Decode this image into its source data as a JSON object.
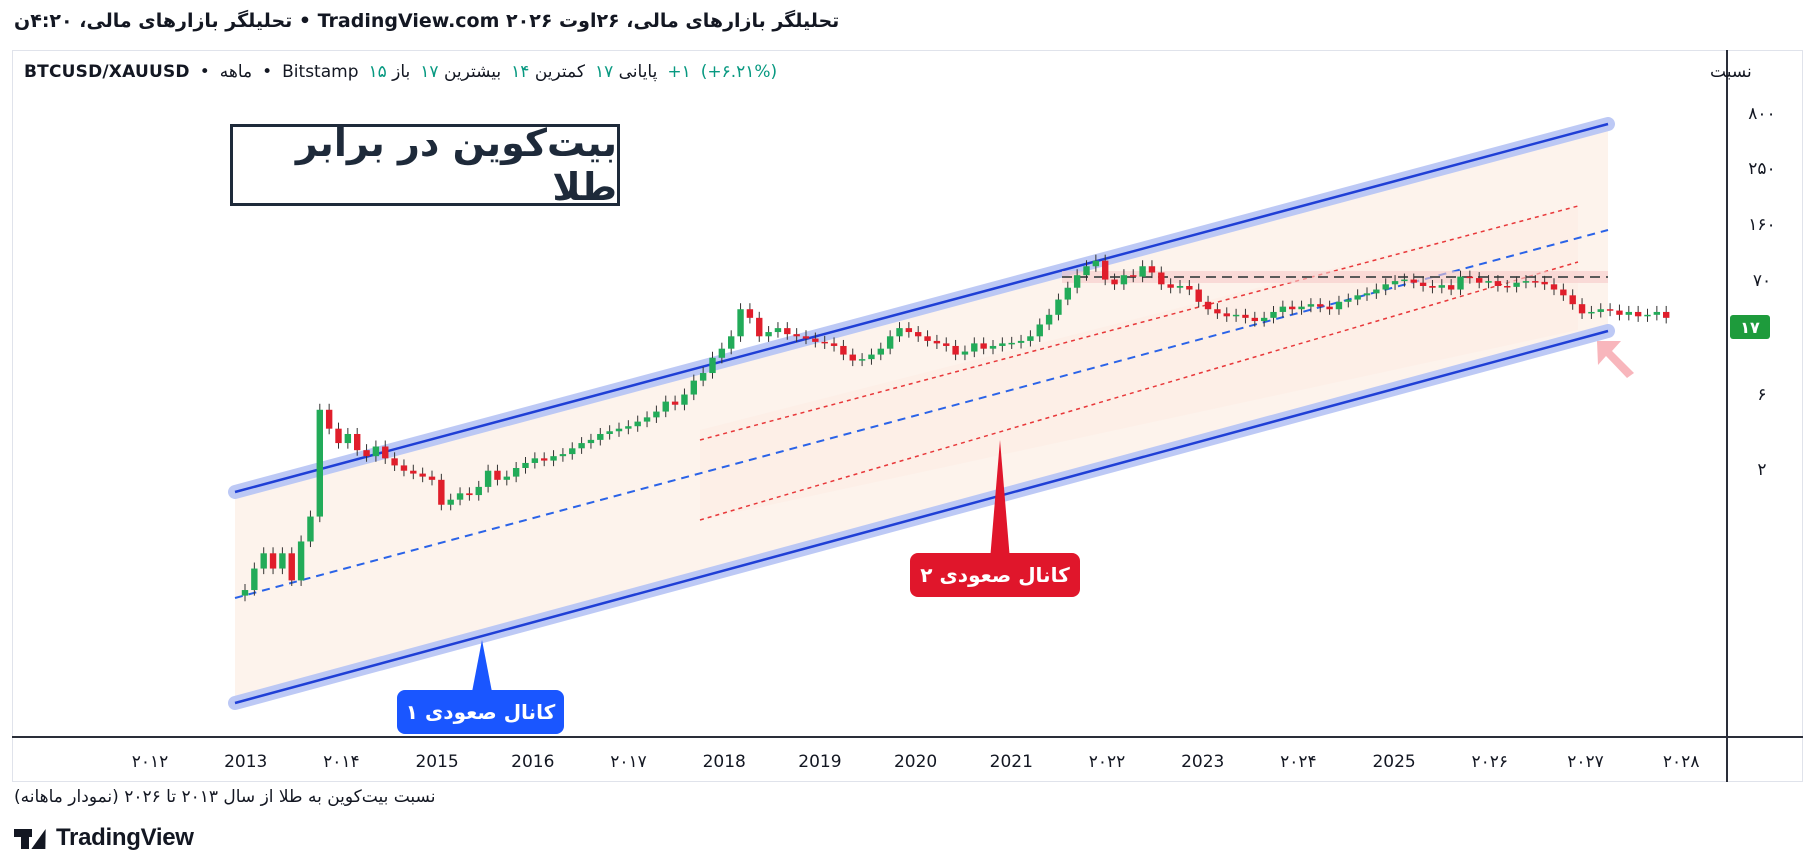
{
  "header": {
    "title": "تحلیلگر بازارهای  مالی، ۲۶اوت ۲۰۲۶  TradingView.com • تحلیلگر بازارهای مالی، ۴:۲۰ن"
  },
  "legend": {
    "symbol": "BTCUSD/XAUUSD",
    "sep1": "•",
    "interval": "ماهه",
    "sep2": "•",
    "exchange": "Bitstamp",
    "open_label": "باز",
    "open_value": "۱۵",
    "high_label": "بیشترین",
    "high_value": "۱۷",
    "low_label": "کمترین",
    "low_value": "۱۴",
    "close_label": "پایانی",
    "close_value": "۱۷",
    "change": "+۱",
    "change_pct": "(+۶.۲۱%)"
  },
  "overlay": {
    "title": "بیت‌کوین در برابر طلا",
    "callout_channel1": "کانال صعودی ۱",
    "callout_channel2": "کانال صعودی ۲"
  },
  "footer": {
    "caption": "نسبت بیت‌کوین به طلا از سال ۲۰۱۳ تا ۲۰۲۶ (نمودار ماهانه)",
    "brand": "TradingView"
  },
  "colors": {
    "up": "#22ab59",
    "down": "#e01e2b",
    "channel_line": "#1f3fd6",
    "channel_glow": "#b6c4f5",
    "mid_line": "#2a63e8",
    "inner_channel": "#e8383a",
    "fill": "#fdf3ec",
    "price_badge": "#1e9b3c"
  },
  "chart_data": {
    "type": "candlestick",
    "y_axis_title": "نسبت",
    "y_scale": "log",
    "y_ticks": [
      "۸۰۰",
      "۲۵۰",
      "۱۶۰",
      "۷۰",
      "۶",
      "۲"
    ],
    "last_price_label": "۱۷",
    "x_ticks": [
      "۲۰۱۲",
      "2013",
      "۲۰۱۴",
      "2015",
      "2016",
      "۲۰۱۷",
      "2018",
      "2019",
      "2020",
      "2021",
      "۲۰۲۲",
      "2023",
      "۲۰۲۴",
      "2025",
      "۲۰۲۶",
      "۲۰۲۷",
      "۲۰۲۸"
    ],
    "series": [
      {
        "close": [
          0.1,
          0.15,
          0.2,
          0.15,
          0.2,
          0.12,
          0.25,
          0.4,
          3.0,
          2.1,
          1.6,
          1.9,
          1.4,
          1.25,
          1.5,
          1.2,
          1.05,
          0.95,
          0.9,
          0.85,
          0.8,
          0.5,
          0.55,
          0.62,
          0.6,
          0.7,
          0.95,
          0.8,
          0.85,
          1.0,
          1.1,
          1.2,
          1.15,
          1.25,
          1.3,
          1.45,
          1.6,
          1.7,
          1.9,
          2.0,
          2.1,
          2.2,
          2.4,
          2.6,
          2.9,
          3.5,
          3.3,
          4.0,
          5.2,
          6.0,
          8.0,
          9.5,
          12.0,
          20.0,
          17.0,
          12.0,
          13.0,
          14.0,
          12.5,
          12.0,
          11.5,
          10.8,
          10.5,
          10.0,
          8.5,
          7.6,
          7.8,
          8.5,
          9.5,
          12.0,
          14.0,
          13.0,
          12.0,
          11.0,
          10.5,
          10.0,
          8.5,
          9.0,
          10.5,
          9.5,
          10.0,
          10.5,
          10.6,
          11.0,
          12.0,
          15.0,
          18.0,
          24.0,
          30.0,
          38.0,
          45.0,
          50.0,
          35.0,
          32.0,
          38.0,
          37.0,
          45.0,
          40.0,
          32.0,
          30.0,
          31.0,
          29.0,
          23.0,
          20.0,
          18.5,
          17.5,
          18.0,
          17.0,
          16.0,
          17.0,
          19.0,
          21.0,
          20.0,
          21.0,
          22.0,
          21.0,
          20.0,
          23.0,
          24.0,
          26.0,
          27.0,
          29.0,
          32.0,
          34.0,
          35.0,
          33.0,
          31.0,
          30.0,
          31.5,
          29.0,
          37.0,
          36.0,
          33.0,
          34.0,
          31.0,
          30.5,
          33.0,
          34.0,
          33.5,
          32.0,
          29.0,
          26.0,
          22.0,
          18.5,
          19.0,
          20.0,
          19.5,
          18.0,
          19.0,
          17.5,
          18.0,
          19.0,
          17.0
        ]
      }
    ]
  }
}
